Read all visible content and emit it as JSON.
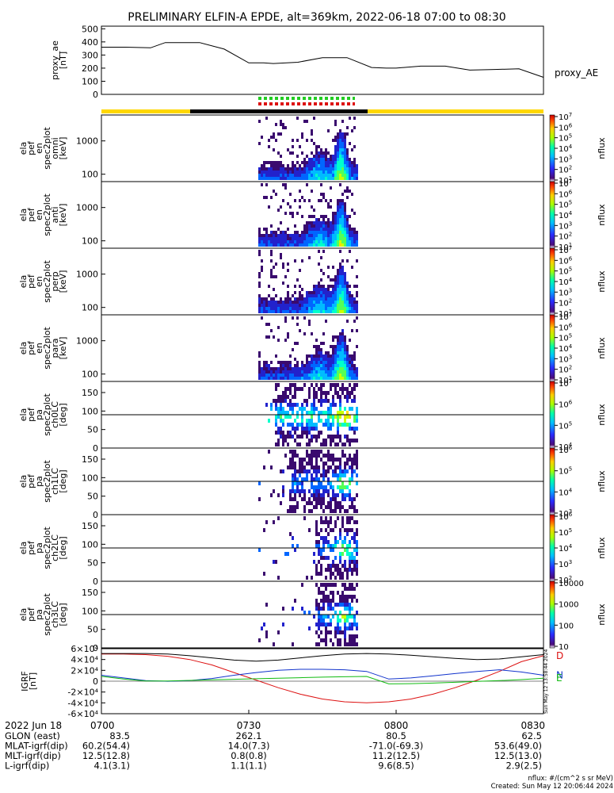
{
  "title": "PRELIMINARY ELFIN-A EPDE, alt=369km, 2022-06-18 07:00 to 08:30",
  "colors": {
    "black": "#000000",
    "orbit_yellow": "#ffd700",
    "green_flag": "#22cc22",
    "red_flag": "#dd1111",
    "bx_red": "#dd1111",
    "by_blue": "#1133cc",
    "bz_green": "#11bb11"
  },
  "chart_data": [
    {
      "type": "line",
      "id": "proxy_ae",
      "ylabel": [
        "proxy_ae",
        "[nT]"
      ],
      "legend": "proxy_AE",
      "ylim": [
        0,
        520
      ],
      "yticks": [
        "0",
        "100",
        "200",
        "300",
        "400",
        "500"
      ],
      "ytick_values": [
        0,
        100,
        200,
        300,
        400,
        500
      ],
      "x": [
        0,
        5,
        10,
        13,
        15,
        20,
        25,
        30,
        33,
        35,
        40,
        45,
        50,
        55,
        58,
        60,
        65,
        70,
        75,
        80,
        85,
        90
      ],
      "values": [
        360,
        360,
        355,
        395,
        395,
        395,
        345,
        240,
        240,
        235,
        245,
        280,
        280,
        205,
        200,
        200,
        215,
        215,
        185,
        190,
        195,
        130
      ]
    },
    {
      "type": "heatmap",
      "id": "omni",
      "ylabel": [
        "ela",
        "pef",
        "en",
        "spec2plot",
        "omni",
        "[keV]"
      ],
      "yscale": "log",
      "ylim": [
        60,
        6000
      ],
      "yticks": [
        "100",
        "1000"
      ],
      "ytick_values": [
        100,
        1000
      ],
      "colorbar": {
        "label": "nflux",
        "ticks": [
          "10^1",
          "10^2",
          "10^3",
          "10^4",
          "10^5",
          "10^6",
          "10^7"
        ]
      }
    },
    {
      "type": "heatmap",
      "id": "anti",
      "ylabel": [
        "ela",
        "pef",
        "en",
        "spec2plot",
        "anti",
        "[keV]"
      ],
      "yscale": "log",
      "ylim": [
        60,
        6000
      ],
      "yticks": [
        "100",
        "1000"
      ],
      "ytick_values": [
        100,
        1000
      ],
      "colorbar": {
        "label": "nflux",
        "ticks": [
          "10^1",
          "10^2",
          "10^3",
          "10^4",
          "10^5",
          "10^6",
          "10^7"
        ]
      }
    },
    {
      "type": "heatmap",
      "id": "perp",
      "ylabel": [
        "ela",
        "pef",
        "en",
        "spec2plot",
        "perp",
        "[keV]"
      ],
      "yscale": "log",
      "ylim": [
        60,
        6000
      ],
      "yticks": [
        "100",
        "1000"
      ],
      "ytick_values": [
        100,
        1000
      ],
      "colorbar": {
        "label": "nflux",
        "ticks": [
          "10^1",
          "10^2",
          "10^3",
          "10^4",
          "10^5",
          "10^6",
          "10^7"
        ]
      }
    },
    {
      "type": "heatmap",
      "id": "para",
      "ylabel": [
        "ela",
        "pef",
        "en",
        "spec2plot",
        "para",
        "[keV]"
      ],
      "yscale": "log",
      "ylim": [
        60,
        6000
      ],
      "yticks": [
        "100",
        "1000"
      ],
      "ytick_values": [
        100,
        1000
      ],
      "colorbar": {
        "label": "nflux",
        "ticks": [
          "10^1",
          "10^2",
          "10^3",
          "10^4",
          "10^5",
          "10^6",
          "10^7"
        ]
      }
    },
    {
      "type": "heatmap",
      "id": "ch0LC",
      "ylabel": [
        "ela",
        "pef",
        "pa",
        "spec2plot",
        "ch0LC",
        "[deg]"
      ],
      "ylim": [
        0,
        180
      ],
      "yticks": [
        "0",
        "50",
        "100",
        "150"
      ],
      "ytick_values": [
        0,
        50,
        100,
        150
      ],
      "colorbar": {
        "label": "nflux",
        "ticks": [
          "10^4",
          "10^5",
          "10^6",
          "10^7"
        ]
      }
    },
    {
      "type": "heatmap",
      "id": "ch1LC",
      "ylabel": [
        "ela",
        "pef",
        "pa",
        "spec2plot",
        "ch1LC",
        "[deg]"
      ],
      "ylim": [
        0,
        180
      ],
      "yticks": [
        "0",
        "50",
        "100",
        "150"
      ],
      "ytick_values": [
        0,
        50,
        100,
        150
      ],
      "colorbar": {
        "label": "nflux",
        "ticks": [
          "10^3",
          "10^4",
          "10^5",
          "10^6"
        ]
      }
    },
    {
      "type": "heatmap",
      "id": "ch2LC",
      "ylabel": [
        "ela",
        "pef",
        "pa",
        "spec2plot",
        "ch2LC",
        "[deg]"
      ],
      "ylim": [
        0,
        180
      ],
      "yticks": [
        "0",
        "50",
        "100",
        "150"
      ],
      "ytick_values": [
        0,
        50,
        100,
        150
      ],
      "colorbar": {
        "label": "nflux",
        "ticks": [
          "10^2",
          "10^3",
          "10^4",
          "10^5",
          "10^6"
        ]
      }
    },
    {
      "type": "heatmap",
      "id": "ch3LC",
      "ylabel": [
        "ela",
        "pef",
        "pa",
        "spec2plot",
        "ch3LC",
        "[deg]"
      ],
      "ylim": [
        0,
        180
      ],
      "yticks": [
        "0",
        "50",
        "100",
        "150"
      ],
      "ytick_values": [
        0,
        50,
        100,
        150
      ],
      "colorbar": {
        "label": "nflux",
        "ticks": [
          "10",
          "100",
          "1000",
          "10000"
        ]
      }
    },
    {
      "type": "line",
      "id": "igrf",
      "ylabel": [
        "IGRF",
        "[nT]"
      ],
      "ylim": [
        -60000,
        60000
      ],
      "yticks": [
        "-6×10⁴",
        "-4×10⁴",
        "-2×10⁴",
        "0",
        "2×10⁴",
        "4×10⁴",
        "6×10⁴"
      ],
      "ytick_values": [
        -60000,
        -40000,
        -20000,
        0,
        20000,
        40000,
        60000
      ],
      "x": [
        0,
        4.5,
        9,
        13.5,
        18,
        22.5,
        27,
        31.5,
        36,
        40.5,
        45,
        49.5,
        54,
        58.5,
        63,
        67.5,
        72,
        76.5,
        81,
        85.5,
        90
      ],
      "series": [
        {
          "name": "D",
          "color": "#dd1111",
          "values": [
            50000,
            50000,
            49000,
            46000,
            40000,
            30000,
            16000,
            2000,
            -12000,
            -24000,
            -33000,
            -38000,
            -40000,
            -38000,
            -33000,
            -24000,
            -12000,
            2000,
            18000,
            36000,
            47000
          ]
        },
        {
          "name": "N",
          "color": "#1133cc",
          "values": [
            11000,
            6000,
            1000,
            -200,
            1000,
            5000,
            11000,
            16000,
            20000,
            22000,
            22000,
            21000,
            18000,
            4000,
            6000,
            10000,
            14000,
            18000,
            21000,
            17000,
            11000
          ]
        },
        {
          "name": "E",
          "color": "#11bb11",
          "values": [
            9000,
            4000,
            500,
            400,
            1500,
            2500,
            3500,
            4500,
            5500,
            6500,
            7500,
            8200,
            8800,
            -5000,
            -4500,
            -3500,
            -2000,
            -500,
            1000,
            3000,
            5500
          ]
        },
        {
          "name": "",
          "color": "#000000",
          "values": [
            51000,
            51000,
            51000,
            50000,
            47000,
            43000,
            39000,
            37000,
            39000,
            43000,
            47000,
            50000,
            51000,
            50000,
            48000,
            45000,
            42000,
            40000,
            41000,
            45000,
            49000
          ]
        }
      ]
    }
  ],
  "time_axis": {
    "date": "2022 Jun 18",
    "ticks": [
      "0700",
      "0730",
      "0800",
      "0830"
    ],
    "tick_minutes": [
      0,
      30,
      60,
      90
    ]
  },
  "ephemeris": {
    "rows": [
      {
        "label": "GLON (east)",
        "values": [
          "83.5",
          "262.1",
          "80.5",
          "62.5"
        ]
      },
      {
        "label": "MLAT-igrf(dip)",
        "values": [
          "60.2(54.4)",
          "14.0(7.3)",
          "-71.0(-69.3)",
          "53.6(49.0)"
        ]
      },
      {
        "label": "MLT-igrf(dip)",
        "values": [
          "12.5(12.8)",
          "0.8(0.8)",
          "11.2(12.5)",
          "12.5(13.0)"
        ]
      },
      {
        "label": "L-igrf(dip)",
        "values": [
          "4.1(3.1)",
          "1.1(1.1)",
          "9.6(8.5)",
          "2.9(2.5)"
        ]
      }
    ]
  },
  "footer": {
    "units": "nflux: #/(cm^2 s sr MeV)",
    "created": "Created: Sun May 12 20:06:44 2024",
    "side_stamp": "Sun May 12 13:58:44 2024"
  }
}
